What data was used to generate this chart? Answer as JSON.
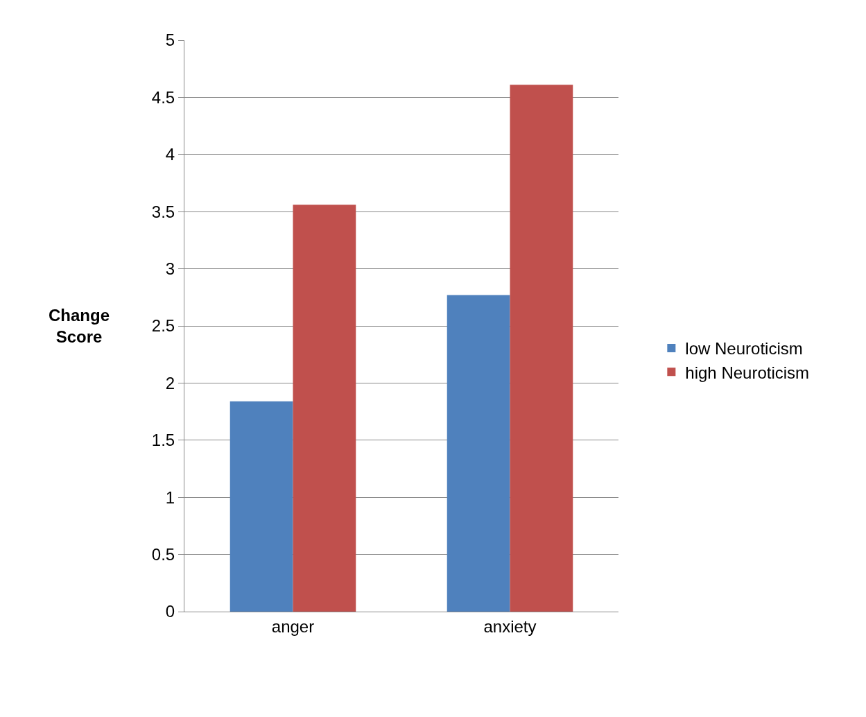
{
  "chart_data": {
    "type": "bar",
    "ylabel": "Change Score",
    "categories": [
      "anger",
      "anxiety"
    ],
    "series": [
      {
        "name": "low Neuroticism",
        "color": "#4f81bd",
        "values": [
          1.84,
          2.77
        ]
      },
      {
        "name": "high Neuroticism",
        "color": "#c0504d",
        "values": [
          3.56,
          4.61
        ]
      }
    ],
    "ylim": [
      0,
      5
    ],
    "yticks": [
      0,
      0.5,
      1,
      1.5,
      2,
      2.5,
      3,
      3.5,
      4,
      4.5,
      5
    ],
    "grid": "y",
    "legend": "right"
  }
}
